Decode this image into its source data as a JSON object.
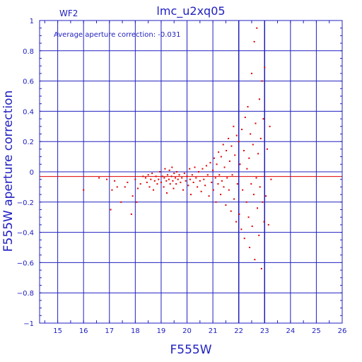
{
  "chart_data": {
    "type": "scatter",
    "title": "lmc_u2xq05",
    "chip_label": "WF2",
    "annotation": "Average aperture correction: -0.031",
    "xlabel": "F555W",
    "ylabel": "F555W aperture correction",
    "xlim": [
      14.3,
      26
    ],
    "ylim": [
      -1,
      1
    ],
    "xticks": [
      15,
      16,
      17,
      18,
      19,
      20,
      21,
      22,
      23,
      24,
      25,
      26
    ],
    "yticks": [
      -1,
      -0.8,
      -0.6,
      -0.4,
      -0.2,
      0,
      0.2,
      0.4,
      0.6,
      0.8,
      1
    ],
    "ytick_labels": [
      "−1",
      "−0.8",
      "−0.6",
      "−0.4",
      "−0.2",
      "0",
      "0.2",
      "0.4",
      "0.6",
      "0.8",
      "1"
    ],
    "grid": true,
    "reference_lines": [
      {
        "y": 0
      },
      {
        "y": -0.031
      }
    ],
    "vertical_lines": [
      22,
      23
    ],
    "colors": {
      "axes": "#2020c0",
      "points": "#e00000",
      "background": "#ffffff"
    },
    "series": [
      {
        "points": [
          [
            16,
            -0.12
          ],
          [
            16.6,
            -0.04
          ],
          [
            16.9,
            -0.05
          ],
          [
            17.05,
            -0.25
          ],
          [
            17.1,
            -0.12
          ],
          [
            17.2,
            -0.06
          ],
          [
            17.3,
            -0.1
          ],
          [
            17.45,
            -0.2
          ],
          [
            17.6,
            -0.1
          ],
          [
            17.7,
            -0.07
          ],
          [
            17.85,
            -0.28
          ],
          [
            17.9,
            -0.16
          ],
          [
            18,
            -0.05
          ],
          [
            18.05,
            -0.2
          ],
          [
            18.1,
            -0.11
          ],
          [
            18.2,
            -0.08
          ],
          [
            18.3,
            -0.03
          ],
          [
            18.4,
            -0.04
          ],
          [
            18.45,
            -0.07
          ],
          [
            18.5,
            -0.02
          ],
          [
            18.55,
            -0.1
          ],
          [
            18.6,
            -0.05
          ],
          [
            18.65,
            -0.01
          ],
          [
            18.7,
            -0.12
          ],
          [
            18.75,
            -0.06
          ],
          [
            18.8,
            -0.03
          ],
          [
            18.85,
            -0.08
          ],
          [
            18.9,
            -0.05
          ],
          [
            18.95,
            0.0
          ],
          [
            19.0,
            -0.07
          ],
          [
            19.05,
            -0.03
          ],
          [
            19.1,
            -0.1
          ],
          [
            19.12,
            -0.04
          ],
          [
            19.15,
            0.02
          ],
          [
            19.2,
            -0.06
          ],
          [
            19.22,
            -0.14
          ],
          [
            19.25,
            -0.02
          ],
          [
            19.3,
            -0.05
          ],
          [
            19.32,
            0.01
          ],
          [
            19.35,
            -0.08
          ],
          [
            19.4,
            -0.03
          ],
          [
            19.42,
            0.03
          ],
          [
            19.45,
            -0.06
          ],
          [
            19.48,
            -0.11
          ],
          [
            19.5,
            -0.01
          ],
          [
            19.55,
            -0.04
          ],
          [
            19.58,
            -0.08
          ],
          [
            19.6,
            0.0
          ],
          [
            19.65,
            -0.05
          ],
          [
            19.7,
            -0.02
          ],
          [
            19.75,
            -0.07
          ],
          [
            19.8,
            -0.04
          ],
          [
            19.85,
            -0.12
          ],
          [
            19.9,
            -0.01
          ],
          [
            19.95,
            -0.06
          ],
          [
            20.0,
            -0.03
          ],
          [
            20.05,
            -0.09
          ],
          [
            20.1,
            0.02
          ],
          [
            20.12,
            -0.05
          ],
          [
            20.15,
            -0.15
          ],
          [
            20.2,
            -0.02
          ],
          [
            20.25,
            -0.07
          ],
          [
            20.3,
            0.03
          ],
          [
            20.35,
            -0.04
          ],
          [
            20.4,
            -0.1
          ],
          [
            20.45,
            0.0
          ],
          [
            20.5,
            -0.06
          ],
          [
            20.55,
            -0.13
          ],
          [
            20.6,
            0.02
          ],
          [
            20.65,
            -0.05
          ],
          [
            20.7,
            -0.09
          ],
          [
            20.75,
            0.04
          ],
          [
            20.8,
            -0.02
          ],
          [
            20.85,
            -0.16
          ],
          [
            20.9,
            0.06
          ],
          [
            20.95,
            -0.07
          ],
          [
            21.0,
            0.01
          ],
          [
            21.02,
            -0.12
          ],
          [
            21.05,
            0.09
          ],
          [
            21.1,
            -0.04
          ],
          [
            21.12,
            -0.2
          ],
          [
            21.15,
            0.05
          ],
          [
            21.2,
            -0.08
          ],
          [
            21.22,
            0.13
          ],
          [
            21.25,
            -0.02
          ],
          [
            21.3,
            -0.15
          ],
          [
            21.32,
            0.1
          ],
          [
            21.35,
            -0.06
          ],
          [
            21.4,
            0.18
          ],
          [
            21.42,
            -0.1
          ],
          [
            21.45,
            0.03
          ],
          [
            21.5,
            -0.22
          ],
          [
            21.52,
            0.14
          ],
          [
            21.55,
            -0.04
          ],
          [
            21.6,
            0.22
          ],
          [
            21.62,
            -0.12
          ],
          [
            21.65,
            0.07
          ],
          [
            21.7,
            -0.26
          ],
          [
            21.72,
            0.17
          ],
          [
            21.75,
            -0.02
          ],
          [
            21.8,
            0.3
          ],
          [
            21.82,
            -0.18
          ],
          [
            21.85,
            0.11
          ],
          [
            21.9,
            -0.33
          ],
          [
            21.92,
            0.24
          ],
          [
            21.95,
            -0.08
          ],
          [
            22.0,
            0.2
          ],
          [
            22.02,
            -0.28
          ],
          [
            22.05,
            0.05
          ],
          [
            22.1,
            -0.38
          ],
          [
            22.12,
            0.28
          ],
          [
            22.15,
            -0.12
          ],
          [
            22.2,
            0.14
          ],
          [
            22.22,
            -0.44
          ],
          [
            22.25,
            0.36
          ],
          [
            22.3,
            -0.2
          ],
          [
            22.32,
            0.02
          ],
          [
            22.35,
            0.43
          ],
          [
            22.38,
            -0.3
          ],
          [
            22.4,
            0.09
          ],
          [
            22.42,
            -0.5
          ],
          [
            22.45,
            0.25
          ],
          [
            22.48,
            -0.08
          ],
          [
            22.5,
            0.65
          ],
          [
            22.52,
            -0.36
          ],
          [
            22.55,
            0.18
          ],
          [
            22.58,
            -0.15
          ],
          [
            22.6,
            0.86
          ],
          [
            22.62,
            -0.58
          ],
          [
            22.65,
            0.32
          ],
          [
            22.68,
            -0.04
          ],
          [
            22.7,
            0.95
          ],
          [
            22.72,
            -0.24
          ],
          [
            22.75,
            0.12
          ],
          [
            22.78,
            -0.42
          ],
          [
            22.8,
            0.48
          ],
          [
            22.82,
            -0.1
          ],
          [
            22.85,
            0.22
          ],
          [
            22.88,
            -0.64
          ],
          [
            22.9,
            0.6
          ],
          [
            22.92,
            -0.2
          ],
          [
            22.95,
            0.35
          ],
          [
            22.98,
            -0.33
          ],
          [
            23.0,
            0.69
          ],
          [
            23.05,
            -0.16
          ],
          [
            23.1,
            0.15
          ],
          [
            23.15,
            -0.35
          ],
          [
            23.2,
            0.3
          ],
          [
            23.25,
            -0.05
          ]
        ]
      }
    ]
  }
}
